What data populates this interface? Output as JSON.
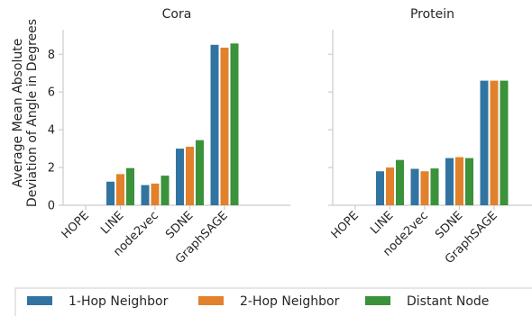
{
  "chart_data": [
    {
      "type": "bar",
      "title": "Cora",
      "ylabel": [
        "Average Mean Absolute",
        "Deviation of Angle in Degrees"
      ],
      "categories": [
        "HOPE",
        "LINE",
        "node2vec",
        "SDNE",
        "GraphSAGE"
      ],
      "ylim": [
        0,
        9.3
      ],
      "yticks": [
        0,
        2,
        4,
        6,
        8
      ],
      "series": [
        {
          "name": "1-Hop Neighbor",
          "color": "#3274a1",
          "values": [
            0.0,
            1.25,
            1.07,
            3.0,
            8.5
          ]
        },
        {
          "name": "2-Hop Neighbor",
          "color": "#e1812c",
          "values": [
            0.0,
            1.65,
            1.15,
            3.1,
            8.35
          ]
        },
        {
          "name": "Distant Node",
          "color": "#3a923a",
          "values": [
            0.0,
            1.97,
            1.57,
            3.45,
            8.57
          ]
        }
      ]
    },
    {
      "type": "bar",
      "title": "Protein",
      "categories": [
        "HOPE",
        "LINE",
        "node2vec",
        "SDNE",
        "GraphSAGE"
      ],
      "ylim": [
        0,
        9.3
      ],
      "yticks": [
        0,
        2,
        4,
        6,
        8
      ],
      "series": [
        {
          "name": "1-Hop Neighbor",
          "color": "#3274a1",
          "values": [
            0.0,
            1.8,
            1.93,
            2.5,
            6.6
          ]
        },
        {
          "name": "2-Hop Neighbor",
          "color": "#e1812c",
          "values": [
            0.0,
            2.0,
            1.8,
            2.55,
            6.6
          ]
        },
        {
          "name": "Distant Node",
          "color": "#3a923a",
          "values": [
            0.0,
            2.4,
            1.95,
            2.5,
            6.6
          ]
        }
      ]
    }
  ],
  "legend": {
    "placement": "bottom",
    "items": [
      {
        "label": "1-Hop Neighbor",
        "color": "#3274a1"
      },
      {
        "label": "2-Hop Neighbor",
        "color": "#e1812c"
      },
      {
        "label": "Distant Node",
        "color": "#3a923a"
      }
    ]
  }
}
